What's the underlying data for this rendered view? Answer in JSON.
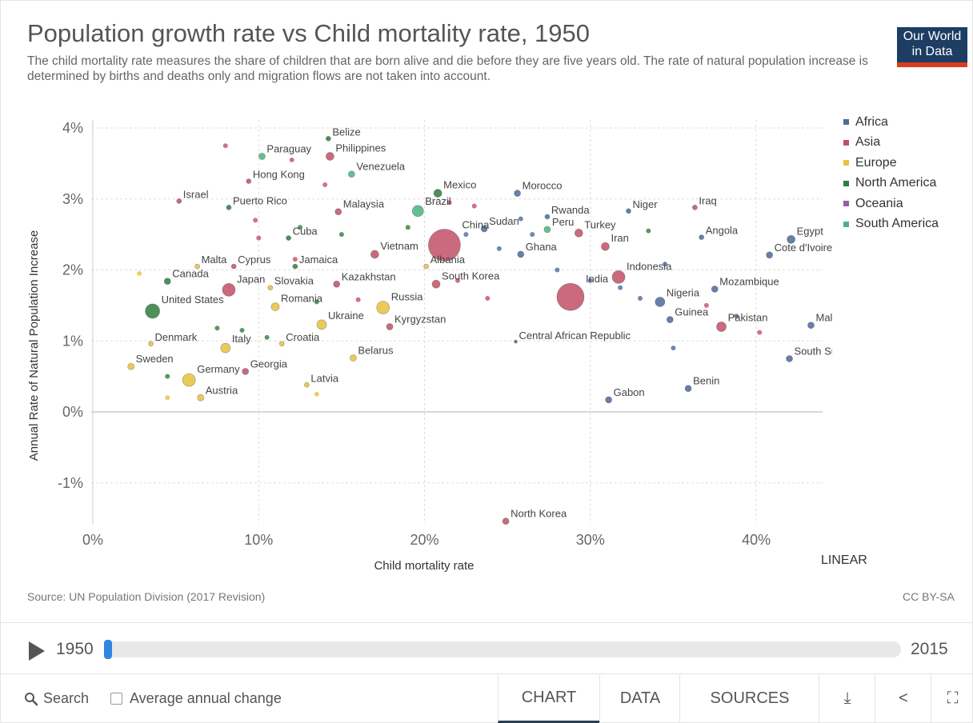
{
  "header": {
    "title": "Population growth rate vs Child mortality rate, 1950",
    "subtitle": "The child mortality rate measures the share of children that are born alive and die before they are five years old. The rate of natural population increase is determined by births and deaths only and migration flows are not taken into account.",
    "logo_line1": "Our World",
    "logo_line2": "in Data"
  },
  "chart_data": {
    "type": "scatter",
    "title": "Population growth rate vs Child mortality rate, 1950",
    "xlabel": "Child mortality rate",
    "ylabel": "Annual Rate of Natural Population Increase",
    "xlim": [
      0,
      44
    ],
    "ylim": [
      -1.5,
      4.2
    ],
    "x_ticks": [
      "0%",
      "10%",
      "20%",
      "30%",
      "40%"
    ],
    "x_tick_values": [
      0,
      10,
      20,
      30,
      40
    ],
    "y_ticks": [
      "4%",
      "3%",
      "2%",
      "1%",
      "0%",
      "-1%"
    ],
    "y_tick_values": [
      4,
      3,
      2,
      1,
      0,
      -1
    ],
    "grid": true,
    "scale": "LINEAR",
    "legend": {
      "placement": "right",
      "entries": [
        {
          "name": "Africa",
          "color": "#4c6a9c"
        },
        {
          "name": "Asia",
          "color": "#c15065"
        },
        {
          "name": "Europe",
          "color": "#e8c13d"
        },
        {
          "name": "North America",
          "color": "#2d7e3f"
        },
        {
          "name": "Oceania",
          "color": "#9a5ba8"
        },
        {
          "name": "South America",
          "color": "#48b57c"
        }
      ]
    },
    "points": [
      {
        "label": "Belize",
        "x": 14.2,
        "y": 3.85,
        "r": 3,
        "region": "North America"
      },
      {
        "label": "Paraguay",
        "x": 10.2,
        "y": 3.6,
        "r": 4,
        "region": "South America"
      },
      {
        "label": "Philippines",
        "x": 14.3,
        "y": 3.6,
        "r": 5,
        "region": "Asia"
      },
      {
        "label": "Venezuela",
        "x": 15.6,
        "y": 3.35,
        "r": 4,
        "region": "South America"
      },
      {
        "label": "Hong Kong",
        "x": 9.4,
        "y": 3.25,
        "r": 3,
        "region": "Asia"
      },
      {
        "label": "Israel",
        "x": 5.2,
        "y": 2.97,
        "r": 3,
        "region": "Asia"
      },
      {
        "label": "Puerto Rico",
        "x": 8.2,
        "y": 2.88,
        "r": 3,
        "region": "North America"
      },
      {
        "label": "Malaysia",
        "x": 14.8,
        "y": 2.82,
        "r": 4,
        "region": "Asia"
      },
      {
        "label": "Mexico",
        "x": 20.8,
        "y": 3.08,
        "r": 5,
        "region": "North America"
      },
      {
        "label": "Brazil",
        "x": 19.6,
        "y": 2.83,
        "r": 7,
        "region": "South America"
      },
      {
        "label": "Morocco",
        "x": 25.6,
        "y": 3.08,
        "r": 4,
        "region": "Africa"
      },
      {
        "label": "Rwanda",
        "x": 27.4,
        "y": 2.75,
        "r": 3,
        "region": "Africa"
      },
      {
        "label": "Niger",
        "x": 32.3,
        "y": 2.83,
        "r": 3,
        "region": "Africa"
      },
      {
        "label": "Iraq",
        "x": 36.3,
        "y": 2.88,
        "r": 3,
        "region": "Asia"
      },
      {
        "label": "Sudan",
        "x": 23.6,
        "y": 2.58,
        "r": 4,
        "region": "Africa"
      },
      {
        "label": "China",
        "x": 21.2,
        "y": 2.35,
        "r": 20,
        "region": "Asia"
      },
      {
        "label": "Peru",
        "x": 27.4,
        "y": 2.57,
        "r": 4,
        "region": "South America"
      },
      {
        "label": "Turkey",
        "x": 29.3,
        "y": 2.52,
        "r": 5,
        "region": "Asia"
      },
      {
        "label": "Angola",
        "x": 36.7,
        "y": 2.46,
        "r": 3,
        "region": "Africa"
      },
      {
        "label": "Egypt",
        "x": 42.1,
        "y": 2.43,
        "r": 5,
        "region": "Africa"
      },
      {
        "label": "Cuba",
        "x": 11.8,
        "y": 2.45,
        "r": 3,
        "region": "North America"
      },
      {
        "label": "Iran",
        "x": 30.9,
        "y": 2.33,
        "r": 5,
        "region": "Asia"
      },
      {
        "label": "Cote d'Ivoire",
        "x": 40.8,
        "y": 2.21,
        "r": 4,
        "region": "Africa"
      },
      {
        "label": "Vietnam",
        "x": 17.0,
        "y": 2.22,
        "r": 5,
        "region": "Asia"
      },
      {
        "label": "Ghana",
        "x": 25.8,
        "y": 2.22,
        "r": 4,
        "region": "Africa"
      },
      {
        "label": "Albania",
        "x": 20.1,
        "y": 2.05,
        "r": 3,
        "region": "Europe"
      },
      {
        "label": "Malta",
        "x": 6.3,
        "y": 2.05,
        "r": 3,
        "region": "Europe"
      },
      {
        "label": "Cyprus",
        "x": 8.5,
        "y": 2.05,
        "r": 3,
        "region": "Asia"
      },
      {
        "label": "Jamaica",
        "x": 12.2,
        "y": 2.05,
        "r": 3,
        "region": "North America"
      },
      {
        "label": "Indonesia",
        "x": 31.7,
        "y": 1.9,
        "r": 8,
        "region": "Asia"
      },
      {
        "label": "Canada",
        "x": 4.5,
        "y": 1.84,
        "r": 4,
        "region": "North America"
      },
      {
        "label": "Slovakia",
        "x": 10.7,
        "y": 1.75,
        "r": 3,
        "region": "Europe"
      },
      {
        "label": "Kazakhstan",
        "x": 14.7,
        "y": 1.8,
        "r": 4,
        "region": "Asia"
      },
      {
        "label": "South Korea",
        "x": 20.7,
        "y": 1.8,
        "r": 5,
        "region": "Asia"
      },
      {
        "label": "India",
        "x": 28.8,
        "y": 1.62,
        "r": 17,
        "region": "Asia"
      },
      {
        "label": "Mozambique",
        "x": 37.5,
        "y": 1.73,
        "r": 4,
        "region": "Africa"
      },
      {
        "label": "Japan",
        "x": 8.2,
        "y": 1.72,
        "r": 8,
        "region": "Asia"
      },
      {
        "label": "Nigeria",
        "x": 34.2,
        "y": 1.55,
        "r": 6,
        "region": "Africa"
      },
      {
        "label": "Romania",
        "x": 11.0,
        "y": 1.48,
        "r": 5,
        "region": "Europe"
      },
      {
        "label": "Russia",
        "x": 17.5,
        "y": 1.47,
        "r": 8,
        "region": "Europe"
      },
      {
        "label": "United States",
        "x": 3.6,
        "y": 1.42,
        "r": 9,
        "region": "North America"
      },
      {
        "label": "Guinea",
        "x": 34.8,
        "y": 1.3,
        "r": 4,
        "region": "Africa"
      },
      {
        "label": "Pakistan",
        "x": 37.9,
        "y": 1.2,
        "r": 6,
        "region": "Asia"
      },
      {
        "label": "Mali",
        "x": 43.3,
        "y": 1.22,
        "r": 4,
        "region": "Africa"
      },
      {
        "label": "Ukraine",
        "x": 13.8,
        "y": 1.23,
        "r": 6,
        "region": "Europe"
      },
      {
        "label": "Kyrgyzstan",
        "x": 17.9,
        "y": 1.2,
        "r": 4,
        "region": "Asia"
      },
      {
        "label": "Denmark",
        "x": 3.5,
        "y": 0.96,
        "r": 3,
        "region": "Europe"
      },
      {
        "label": "Italy",
        "x": 8.0,
        "y": 0.9,
        "r": 6,
        "region": "Europe"
      },
      {
        "label": "Croatia",
        "x": 11.4,
        "y": 0.96,
        "r": 3,
        "region": "Europe"
      },
      {
        "label": "Central African Republic",
        "x": 25.5,
        "y": 0.99,
        "r": 2,
        "region": "Africa"
      },
      {
        "label": "South Sudan",
        "x": 42.0,
        "y": 0.75,
        "r": 4,
        "region": "Africa"
      },
      {
        "label": "Belarus",
        "x": 15.7,
        "y": 0.76,
        "r": 4,
        "region": "Europe"
      },
      {
        "label": "Sweden",
        "x": 2.3,
        "y": 0.64,
        "r": 4,
        "region": "Europe"
      },
      {
        "label": "Georgia",
        "x": 9.2,
        "y": 0.57,
        "r": 4,
        "region": "Asia"
      },
      {
        "label": "Germany",
        "x": 5.8,
        "y": 0.45,
        "r": 8,
        "region": "Europe"
      },
      {
        "label": "Latvia",
        "x": 12.9,
        "y": 0.38,
        "r": 3,
        "region": "Europe"
      },
      {
        "label": "Benin",
        "x": 35.9,
        "y": 0.33,
        "r": 4,
        "region": "Africa"
      },
      {
        "label": "Gabon",
        "x": 31.1,
        "y": 0.17,
        "r": 4,
        "region": "Africa"
      },
      {
        "label": "Austria",
        "x": 6.5,
        "y": 0.2,
        "r": 4,
        "region": "Europe"
      },
      {
        "label": "North Korea",
        "x": 24.9,
        "y": -1.54,
        "r": 4,
        "region": "Asia"
      }
    ],
    "unlabeled_points": [
      {
        "x": 8.0,
        "y": 3.75,
        "r": 3,
        "region": "Asia"
      },
      {
        "x": 12.0,
        "y": 3.55,
        "r": 3,
        "region": "Asia"
      },
      {
        "x": 14.0,
        "y": 3.2,
        "r": 3,
        "region": "Asia"
      },
      {
        "x": 12.5,
        "y": 2.6,
        "r": 3,
        "region": "North America"
      },
      {
        "x": 15.0,
        "y": 2.5,
        "r": 3,
        "region": "North America"
      },
      {
        "x": 19.0,
        "y": 2.6,
        "r": 3,
        "region": "North America"
      },
      {
        "x": 21.5,
        "y": 2.95,
        "r": 3,
        "region": "Asia"
      },
      {
        "x": 22.5,
        "y": 2.5,
        "r": 3,
        "region": "Africa"
      },
      {
        "x": 24.5,
        "y": 2.3,
        "r": 3,
        "region": "Africa"
      },
      {
        "x": 26.5,
        "y": 2.5,
        "r": 3,
        "region": "Africa"
      },
      {
        "x": 28.0,
        "y": 2.0,
        "r": 3,
        "region": "Africa"
      },
      {
        "x": 30.0,
        "y": 1.85,
        "r": 3,
        "region": "Africa"
      },
      {
        "x": 33.0,
        "y": 1.6,
        "r": 3,
        "region": "Africa"
      },
      {
        "x": 33.5,
        "y": 2.55,
        "r": 3,
        "region": "North America"
      },
      {
        "x": 35.0,
        "y": 0.9,
        "r": 3,
        "region": "Africa"
      },
      {
        "x": 40.2,
        "y": 1.12,
        "r": 3,
        "region": "Asia"
      },
      {
        "x": 22.0,
        "y": 1.85,
        "r": 3,
        "region": "Asia"
      },
      {
        "x": 23.8,
        "y": 1.6,
        "r": 3,
        "region": "Asia"
      },
      {
        "x": 16.0,
        "y": 1.58,
        "r": 3,
        "region": "Asia"
      },
      {
        "x": 13.5,
        "y": 1.55,
        "r": 3,
        "region": "North America"
      },
      {
        "x": 9.0,
        "y": 1.15,
        "r": 3,
        "region": "North America"
      },
      {
        "x": 10.5,
        "y": 1.05,
        "r": 3,
        "region": "North America"
      },
      {
        "x": 4.5,
        "y": 0.5,
        "r": 3,
        "region": "North America"
      },
      {
        "x": 7.5,
        "y": 1.18,
        "r": 3,
        "region": "North America"
      },
      {
        "x": 2.8,
        "y": 1.95,
        "r": 3,
        "region": "Europe"
      },
      {
        "x": 4.5,
        "y": 0.2,
        "r": 3,
        "region": "Europe"
      },
      {
        "x": 13.5,
        "y": 0.25,
        "r": 3,
        "region": "Europe"
      },
      {
        "x": 9.8,
        "y": 2.7,
        "r": 3,
        "region": "Asia"
      },
      {
        "x": 10.0,
        "y": 2.45,
        "r": 3,
        "region": "Asia"
      },
      {
        "x": 12.2,
        "y": 2.15,
        "r": 3,
        "region": "Asia"
      },
      {
        "x": 23.0,
        "y": 2.9,
        "r": 3,
        "region": "Asia"
      },
      {
        "x": 25.8,
        "y": 2.72,
        "r": 3,
        "region": "Africa"
      },
      {
        "x": 31.8,
        "y": 1.75,
        "r": 3,
        "region": "Africa"
      },
      {
        "x": 34.5,
        "y": 2.08,
        "r": 3,
        "region": "Africa"
      },
      {
        "x": 38.8,
        "y": 1.35,
        "r": 3,
        "region": "Africa"
      },
      {
        "x": 37.0,
        "y": 1.5,
        "r": 3,
        "region": "Asia"
      }
    ]
  },
  "footer_chart": {
    "scale_label": "LINEAR",
    "source": "Source: UN Population Division (2017 Revision)",
    "license": "CC BY-SA"
  },
  "timeline": {
    "start_year": "1950",
    "end_year": "2015",
    "progress": 0
  },
  "controls": {
    "search_label": "Search",
    "avg_change_label": "Average annual change",
    "tab_chart": "CHART",
    "tab_data": "DATA",
    "tab_sources": "SOURCES",
    "download_icon": "⤓",
    "share_icon": "<",
    "fullscreen_icon": "⛶"
  },
  "colors": {
    "Africa": "#4c6a9c",
    "Asia": "#c15065",
    "Europe": "#e8c13d",
    "North America": "#2d7e3f",
    "Oceania": "#9a5ba8",
    "South America": "#48b57c",
    "accent": "#2e86de"
  }
}
